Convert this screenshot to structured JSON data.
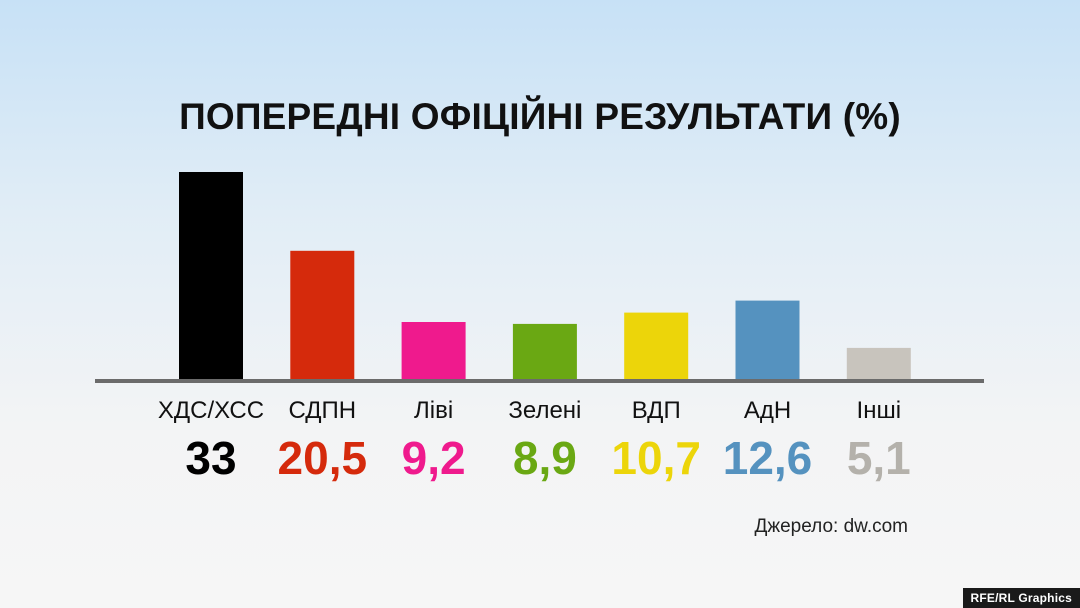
{
  "chart_data": {
    "type": "bar",
    "title": "ПОПЕРЕДНІ ОФІЦІЙНІ РЕЗУЛЬТАТИ (%)",
    "categories": [
      "ХДС/ХСС",
      "СДПН",
      "Ліві",
      "Зелені",
      "ВДП",
      "АдН",
      "Інші"
    ],
    "values": [
      33,
      20.5,
      9.2,
      8.9,
      10.7,
      12.6,
      5.1
    ],
    "value_labels": [
      "33",
      "20,5",
      "9,2",
      "8,9",
      "10,7",
      "12,6",
      "5,1"
    ],
    "colors": [
      "#000000",
      "#d52a0c",
      "#ef1a8d",
      "#6aa813",
      "#ecd50a",
      "#5592bf",
      "#c8c4bd"
    ],
    "label_colors": [
      "#000000",
      "#d52a0c",
      "#ef1a8d",
      "#6aa813",
      "#ecd50a",
      "#5592bf",
      "#b4b1ab"
    ],
    "ylim": [
      0,
      33
    ],
    "grid": false,
    "xlabel": "",
    "ylabel": ""
  },
  "source": "Джерело: dw.com",
  "credit": "RFE/RL Graphics"
}
